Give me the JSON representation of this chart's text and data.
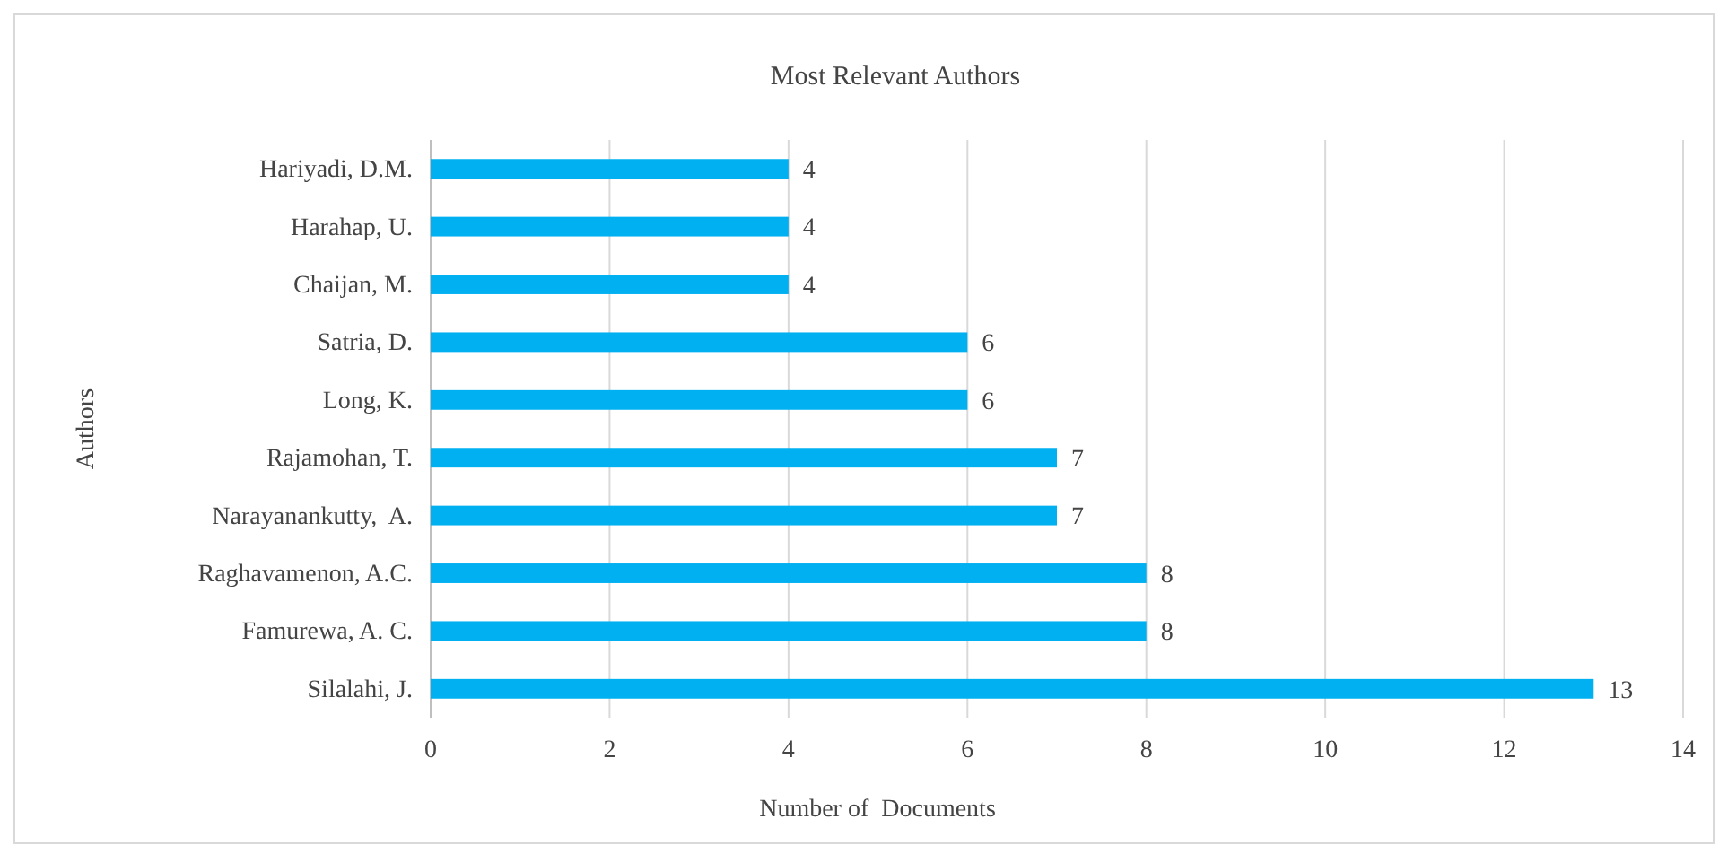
{
  "chart_data": {
    "type": "bar",
    "orientation": "horizontal",
    "title": "Most Relevant Authors",
    "xlabel": "Number of  Documents",
    "ylabel": "Authors",
    "categories": [
      "Hariyadi, D.M.",
      "Harahap, U.",
      "Chaijan, M.",
      "Satria, D.",
      "Long, K.",
      "Rajamohan, T.",
      "Narayanankutty,  A.",
      "Raghavamenon, A.C.",
      "Famurewa, A. C.",
      "Silalahi, J."
    ],
    "values": [
      4,
      4,
      4,
      6,
      6,
      7,
      7,
      8,
      8,
      13
    ],
    "color": "#00b0f0",
    "data_labels": true,
    "xlim": [
      0,
      14
    ],
    "xticks": [
      0,
      2,
      4,
      6,
      8,
      10,
      12,
      14
    ],
    "grid": "x"
  }
}
